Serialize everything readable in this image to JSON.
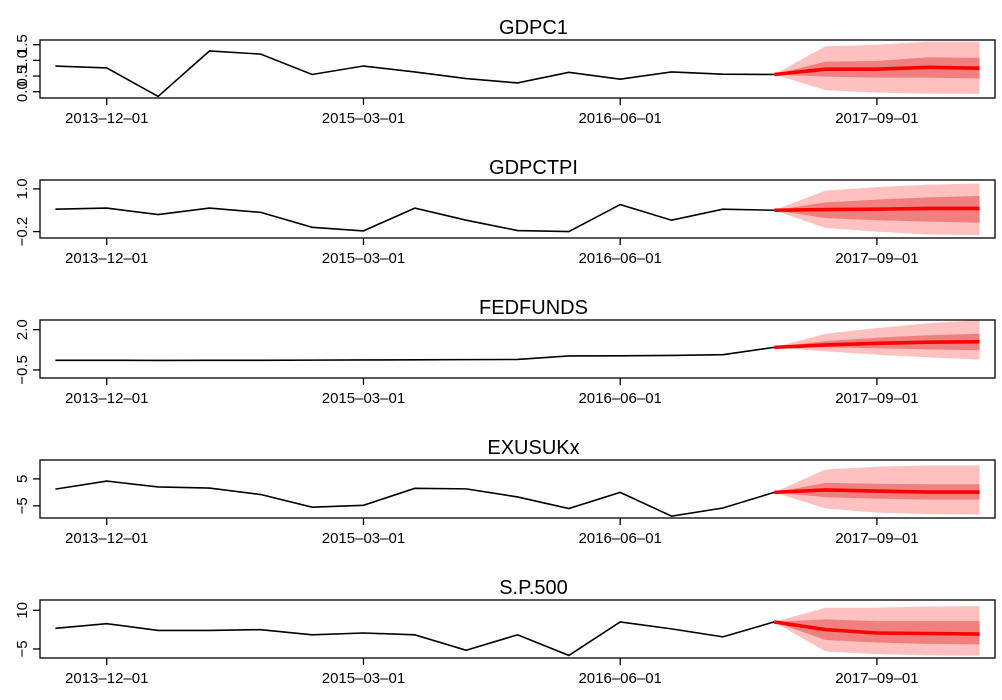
{
  "chart_data": [
    {
      "type": "line",
      "title": "GDPC1",
      "yticks": [
        "0.0",
        "0.5",
        "1.0",
        "1.5"
      ],
      "ytick_values": [
        0,
        0.5,
        1.0,
        1.5
      ],
      "ylim": [
        -0.2,
        1.65
      ],
      "xticks": [
        "2013–12–01",
        "2015–03–01",
        "2016–06–01",
        "2017–09–01"
      ],
      "xtick_index": [
        1,
        6,
        11,
        16
      ],
      "xlim": [
        -0.3,
        18.3
      ],
      "history": [
        0.82,
        0.76,
        -0.15,
        1.3,
        1.2,
        0.55,
        0.82,
        0.63,
        0.42,
        0.28,
        0.62,
        0.4,
        0.63,
        0.56,
        0.55
      ],
      "forecast": {
        "mean": [
          0.55,
          0.72,
          0.72,
          0.78,
          0.75
        ],
        "inner": [
          [
            0.55,
            0.55
          ],
          [
            0.48,
            0.96
          ],
          [
            0.45,
            0.98
          ],
          [
            0.45,
            1.1
          ],
          [
            0.42,
            1.08
          ]
        ],
        "outer": [
          [
            0.55,
            0.55
          ],
          [
            0.05,
            1.45
          ],
          [
            -0.03,
            1.5
          ],
          [
            -0.06,
            1.6
          ],
          [
            -0.07,
            1.6
          ]
        ]
      }
    },
    {
      "type": "line",
      "title": "GDPCTPI",
      "yticks": [
        "−0.2",
        "1.0"
      ],
      "ytick_values": [
        -0.2,
        1.0
      ],
      "ylim": [
        -0.38,
        1.25
      ],
      "xticks": [
        "2013–12–01",
        "2015–03–01",
        "2016–06–01",
        "2017–09–01"
      ],
      "xtick_index": [
        1,
        6,
        11,
        16
      ],
      "xlim": [
        -0.3,
        18.3
      ],
      "history": [
        0.43,
        0.46,
        0.28,
        0.46,
        0.34,
        -0.08,
        -0.18,
        0.46,
        0.12,
        -0.17,
        -0.2,
        0.56,
        0.12,
        0.43,
        0.4
      ],
      "forecast": {
        "mean": [
          0.4,
          0.42,
          0.43,
          0.45,
          0.45
        ],
        "inner": [
          [
            0.4,
            0.4
          ],
          [
            0.18,
            0.62
          ],
          [
            0.12,
            0.7
          ],
          [
            0.08,
            0.76
          ],
          [
            0.05,
            0.8
          ]
        ],
        "outer": [
          [
            0.4,
            0.4
          ],
          [
            -0.1,
            0.95
          ],
          [
            -0.2,
            1.05
          ],
          [
            -0.28,
            1.12
          ],
          [
            -0.3,
            1.15
          ]
        ]
      }
    },
    {
      "type": "line",
      "title": "FEDFUNDS",
      "yticks": [
        "−0.5",
        "2.0"
      ],
      "ytick_values": [
        -0.5,
        2.0
      ],
      "ylim": [
        -1.0,
        2.6
      ],
      "xticks": [
        "2013–12–01",
        "2015–03–01",
        "2016–06–01",
        "2017–09–01"
      ],
      "xtick_index": [
        1,
        6,
        11,
        16
      ],
      "xlim": [
        -0.3,
        18.3
      ],
      "history": [
        0.1,
        0.1,
        0.09,
        0.1,
        0.1,
        0.11,
        0.12,
        0.13,
        0.14,
        0.15,
        0.37,
        0.38,
        0.4,
        0.45,
        0.9
      ],
      "forecast": {
        "mean": [
          0.9,
          1.05,
          1.15,
          1.22,
          1.25
        ],
        "inner": [
          [
            0.9,
            0.9
          ],
          [
            0.9,
            1.3
          ],
          [
            0.85,
            1.5
          ],
          [
            0.78,
            1.65
          ],
          [
            0.72,
            1.75
          ]
        ],
        "outer": [
          [
            0.9,
            0.9
          ],
          [
            0.65,
            1.75
          ],
          [
            0.45,
            2.1
          ],
          [
            0.28,
            2.4
          ],
          [
            0.15,
            2.6
          ]
        ]
      }
    },
    {
      "type": "line",
      "title": "EXUSUKx",
      "yticks": [
        "−5",
        "5"
      ],
      "ytick_values": [
        -5,
        5
      ],
      "ylim": [
        -9.5,
        12.0
      ],
      "xticks": [
        "2013–12–01",
        "2015–03–01",
        "2016–06–01",
        "2017–09–01"
      ],
      "xtick_index": [
        1,
        6,
        11,
        16
      ],
      "xlim": [
        -0.3,
        18.3
      ],
      "history": [
        1.2,
        4.2,
        2.0,
        1.6,
        -0.8,
        -5.5,
        -4.8,
        1.5,
        1.3,
        -1.7,
        -6.0,
        0.0,
        -8.8,
        -5.8,
        0.0
      ],
      "forecast": {
        "mean": [
          0.0,
          0.9,
          0.5,
          0.1,
          0.1
        ],
        "inner": [
          [
            0.0,
            0.0
          ],
          [
            -1.8,
            3.5
          ],
          [
            -2.3,
            3.2
          ],
          [
            -2.7,
            3.0
          ],
          [
            -2.7,
            3.0
          ]
        ],
        "outer": [
          [
            0.0,
            0.0
          ],
          [
            -6.0,
            8.5
          ],
          [
            -7.5,
            9.5
          ],
          [
            -8.0,
            10.0
          ],
          [
            -8.2,
            10.0
          ]
        ]
      }
    },
    {
      "type": "line",
      "title": "S.P.500",
      "yticks": [
        "−5",
        "10"
      ],
      "ytick_values": [
        -5,
        10
      ],
      "ylim": [
        -8.5,
        14.0
      ],
      "xticks": [
        "2013–12–01",
        "2015–03–01",
        "2016–06–01",
        "2017–09–01"
      ],
      "xtick_index": [
        1,
        6,
        11,
        16
      ],
      "xlim": [
        -0.3,
        18.3
      ],
      "history": [
        3.0,
        4.8,
        2.2,
        2.2,
        2.5,
        0.5,
        1.2,
        0.5,
        -5.5,
        0.5,
        -7.5,
        5.5,
        2.8,
        -0.3,
        5.5
      ],
      "forecast": {
        "mean": [
          5.5,
          2.5,
          1.2,
          1.0,
          0.8
        ],
        "inner": [
          [
            5.5,
            5.5
          ],
          [
            -1.5,
            6.5
          ],
          [
            -2.5,
            5.8
          ],
          [
            -3.0,
            5.8
          ],
          [
            -3.2,
            5.8
          ]
        ],
        "outer": [
          [
            5.5,
            5.5
          ],
          [
            -6.0,
            11.0
          ],
          [
            -7.0,
            11.0
          ],
          [
            -7.5,
            11.5
          ],
          [
            -7.6,
            11.6
          ]
        ]
      }
    }
  ],
  "colors": {
    "history_line": "#000000",
    "forecast_line": "#ff0000",
    "fan_outer": "#ffc0c0",
    "fan_inner": "#f08080",
    "frame": "#000000"
  }
}
